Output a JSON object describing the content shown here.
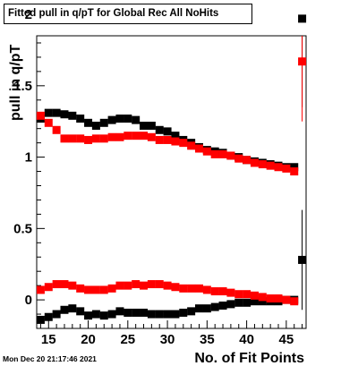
{
  "chart_data": {
    "type": "scatter",
    "title": "Fitted pull in q/pT for Global Rec All NoHits",
    "xlabel": "No. of Fit Points",
    "ylabel": "pull in q/pT",
    "xlim": [
      13.5,
      47.5
    ],
    "ylim": [
      -0.2,
      1.85
    ],
    "xticks": [
      15,
      20,
      25,
      30,
      35,
      40,
      45
    ],
    "yticks": [
      0,
      0.5,
      1,
      1.5,
      2
    ],
    "ytick_labels": [
      "0",
      "0.5",
      "1",
      "1.5",
      "2"
    ],
    "grid": false,
    "series": [
      {
        "color": "#000000",
        "x": [
          14,
          15,
          16,
          17,
          18,
          19,
          20,
          21,
          22,
          23,
          24,
          25,
          26,
          27,
          28,
          29,
          30,
          31,
          32,
          33,
          34,
          35,
          36,
          37,
          38,
          39,
          40,
          41,
          42,
          43,
          44,
          45,
          46,
          47
        ],
        "values": [
          1.27,
          1.31,
          1.31,
          1.3,
          1.29,
          1.27,
          1.24,
          1.22,
          1.24,
          1.26,
          1.27,
          1.27,
          1.26,
          1.22,
          1.22,
          1.19,
          1.18,
          1.15,
          1.12,
          1.1,
          1.07,
          1.05,
          1.04,
          1.03,
          1.01,
          1.0,
          0.98,
          0.97,
          0.96,
          0.95,
          0.94,
          0.93,
          0.93,
          1.97
        ],
        "errors": [
          0,
          0,
          0,
          0,
          0,
          0,
          0,
          0,
          0,
          0,
          0,
          0,
          0,
          0,
          0,
          0,
          0,
          0,
          0,
          0,
          0,
          0,
          0,
          0,
          0,
          0,
          0,
          0,
          0,
          0,
          0,
          0,
          0,
          0.62
        ]
      },
      {
        "color": "#ff0000",
        "x": [
          14,
          15,
          16,
          17,
          18,
          19,
          20,
          21,
          22,
          23,
          24,
          25,
          26,
          27,
          28,
          29,
          30,
          31,
          32,
          33,
          34,
          35,
          36,
          37,
          38,
          39,
          40,
          41,
          42,
          43,
          44,
          45,
          46,
          47
        ],
        "values": [
          1.29,
          1.24,
          1.19,
          1.13,
          1.13,
          1.13,
          1.12,
          1.13,
          1.13,
          1.14,
          1.14,
          1.15,
          1.15,
          1.15,
          1.14,
          1.12,
          1.12,
          1.11,
          1.1,
          1.08,
          1.06,
          1.04,
          1.02,
          1.02,
          1.01,
          0.99,
          0.98,
          0.96,
          0.95,
          0.94,
          0.93,
          0.92,
          0.9,
          1.67
        ],
        "errors": [
          0,
          0,
          0,
          0,
          0,
          0,
          0,
          0,
          0,
          0,
          0,
          0,
          0,
          0,
          0,
          0,
          0,
          0,
          0,
          0,
          0,
          0,
          0,
          0,
          0,
          0,
          0,
          0,
          0,
          0,
          0,
          0,
          0,
          0.42
        ]
      },
      {
        "color": "#000000",
        "x": [
          14,
          15,
          16,
          17,
          18,
          19,
          20,
          21,
          22,
          23,
          24,
          25,
          26,
          27,
          28,
          29,
          30,
          31,
          32,
          33,
          34,
          35,
          36,
          37,
          38,
          39,
          40,
          41,
          42,
          43,
          44,
          45,
          46,
          47
        ],
        "values": [
          -0.14,
          -0.12,
          -0.1,
          -0.07,
          -0.06,
          -0.08,
          -0.11,
          -0.1,
          -0.11,
          -0.1,
          -0.08,
          -0.09,
          -0.09,
          -0.09,
          -0.1,
          -0.1,
          -0.1,
          -0.1,
          -0.09,
          -0.08,
          -0.06,
          -0.06,
          -0.05,
          -0.04,
          -0.03,
          -0.02,
          -0.02,
          -0.01,
          -0.01,
          -0.01,
          -0.01,
          0.0,
          0.0,
          0.28
        ],
        "errors": [
          0,
          0,
          0,
          0,
          0,
          0,
          0,
          0,
          0,
          0,
          0,
          0,
          0,
          0,
          0,
          0,
          0,
          0,
          0,
          0,
          0,
          0,
          0,
          0,
          0,
          0,
          0,
          0,
          0,
          0,
          0,
          0,
          0,
          0.35
        ]
      },
      {
        "color": "#ff0000",
        "x": [
          14,
          15,
          16,
          17,
          18,
          19,
          20,
          21,
          22,
          23,
          24,
          25,
          26,
          27,
          28,
          29,
          30,
          31,
          32,
          33,
          34,
          35,
          36,
          37,
          38,
          39,
          40,
          41,
          42,
          43,
          44,
          45,
          46
        ],
        "values": [
          0.07,
          0.09,
          0.11,
          0.11,
          0.1,
          0.08,
          0.07,
          0.07,
          0.07,
          0.08,
          0.1,
          0.1,
          0.11,
          0.1,
          0.11,
          0.11,
          0.1,
          0.09,
          0.08,
          0.08,
          0.08,
          0.07,
          0.06,
          0.06,
          0.05,
          0.04,
          0.04,
          0.03,
          0.02,
          0.01,
          0.01,
          0.0,
          -0.01
        ],
        "errors": [
          0,
          0,
          0,
          0,
          0,
          0,
          0,
          0,
          0,
          0,
          0,
          0,
          0,
          0,
          0,
          0,
          0,
          0,
          0,
          0,
          0,
          0,
          0,
          0,
          0,
          0,
          0,
          0,
          0,
          0,
          0,
          0,
          0
        ]
      }
    ]
  },
  "footer": {
    "timestamp": "Mon Dec 20 21:17:46 2021"
  }
}
